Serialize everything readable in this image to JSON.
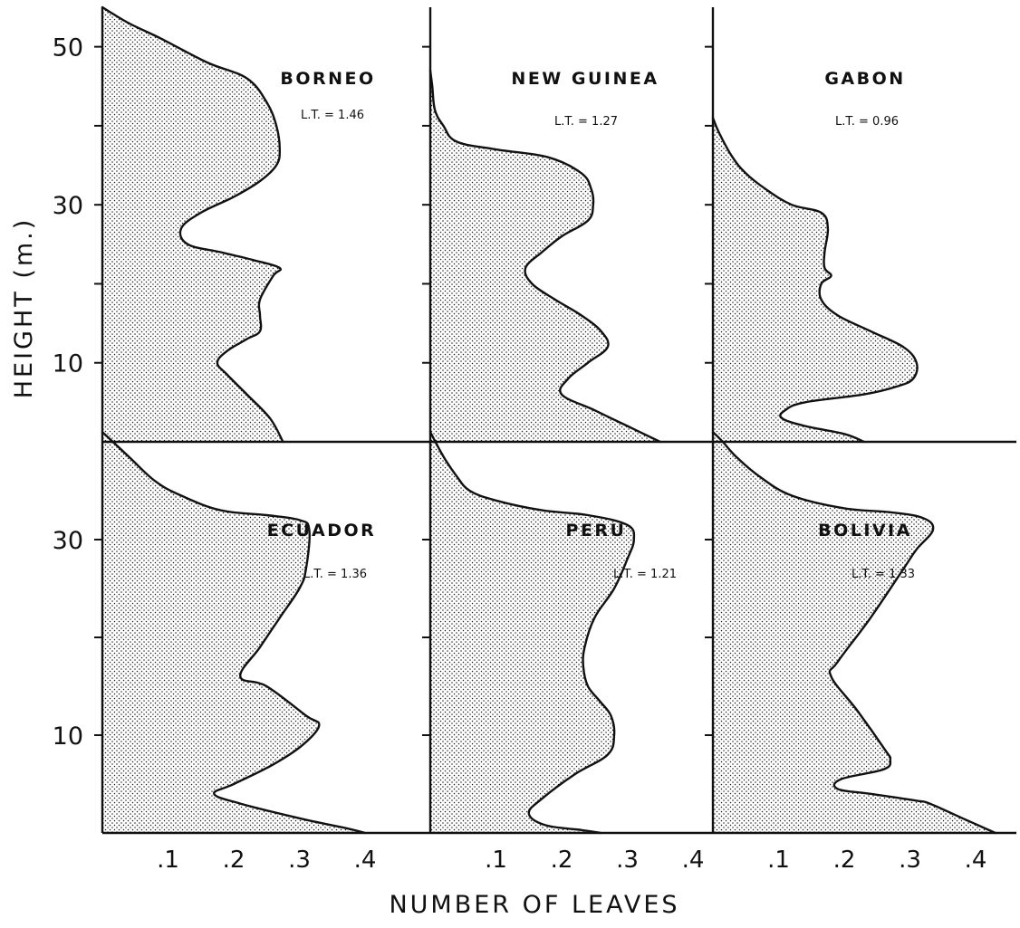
{
  "chart_data": {
    "type": "area",
    "layout": "2x3 small multiples, shared axes",
    "ylabel": "HEIGHT (m.)",
    "xlabel": "NUMBER OF LEAVES",
    "fill_pattern": "stippled",
    "top_row_yticks": [
      "50",
      "30",
      "10"
    ],
    "bottom_row_yticks": [
      "30",
      "10"
    ],
    "xticks": [
      ".1",
      ".2",
      ".3",
      ".4"
    ],
    "xtick_values": [
      0.1,
      0.2,
      0.3,
      0.4
    ],
    "top_row_ylim": [
      0,
      55
    ],
    "bottom_row_ylim": [
      0,
      40
    ],
    "xlim": [
      0,
      0.47
    ],
    "top_row_ytick_values": [
      10,
      20,
      30,
      40,
      50
    ],
    "bottom_row_ytick_values": [
      10,
      20,
      30
    ],
    "panels": [
      {
        "title": "BORNEO",
        "lt": "L.T. = 1.46",
        "row": 0,
        "col": 0,
        "points": [
          [
            0.275,
            0
          ],
          [
            0.255,
            3
          ],
          [
            0.22,
            6
          ],
          [
            0.19,
            8.5
          ],
          [
            0.175,
            10
          ],
          [
            0.19,
            11.5
          ],
          [
            0.22,
            13
          ],
          [
            0.24,
            14
          ],
          [
            0.24,
            16
          ],
          [
            0.24,
            18
          ],
          [
            0.26,
            21
          ],
          [
            0.27,
            22
          ],
          [
            0.23,
            23
          ],
          [
            0.18,
            24
          ],
          [
            0.13,
            25
          ],
          [
            0.12,
            27
          ],
          [
            0.15,
            29
          ],
          [
            0.2,
            31
          ],
          [
            0.24,
            33
          ],
          [
            0.265,
            35
          ],
          [
            0.27,
            37
          ],
          [
            0.265,
            40
          ],
          [
            0.25,
            43
          ],
          [
            0.22,
            46
          ],
          [
            0.16,
            48
          ],
          [
            0.09,
            51
          ],
          [
            0.04,
            53
          ],
          [
            0,
            55
          ]
        ]
      },
      {
        "title": "NEW GUINEA",
        "lt": "L.T. = 1.27",
        "row": 0,
        "col": 1,
        "points": [
          [
            0.35,
            0
          ],
          [
            0.3,
            2
          ],
          [
            0.25,
            4
          ],
          [
            0.2,
            6
          ],
          [
            0.21,
            8
          ],
          [
            0.24,
            10
          ],
          [
            0.27,
            12
          ],
          [
            0.26,
            14
          ],
          [
            0.23,
            16
          ],
          [
            0.19,
            18
          ],
          [
            0.155,
            20
          ],
          [
            0.145,
            22
          ],
          [
            0.17,
            24
          ],
          [
            0.2,
            26
          ],
          [
            0.24,
            28
          ],
          [
            0.248,
            30
          ],
          [
            0.245,
            32
          ],
          [
            0.23,
            34
          ],
          [
            0.18,
            36
          ],
          [
            0.1,
            37
          ],
          [
            0.04,
            38
          ],
          [
            0.02,
            40
          ],
          [
            0.007,
            42
          ],
          [
            0.003,
            45
          ],
          [
            0,
            47
          ]
        ]
      },
      {
        "title": "GABON",
        "lt": "L.T. = 0.96",
        "row": 0,
        "col": 2,
        "points": [
          [
            0.23,
            0
          ],
          [
            0.2,
            1
          ],
          [
            0.14,
            2
          ],
          [
            0.105,
            3
          ],
          [
            0.11,
            4
          ],
          [
            0.14,
            5
          ],
          [
            0.23,
            6
          ],
          [
            0.28,
            7
          ],
          [
            0.305,
            8
          ],
          [
            0.31,
            10
          ],
          [
            0.29,
            12
          ],
          [
            0.24,
            14
          ],
          [
            0.19,
            16
          ],
          [
            0.165,
            18
          ],
          [
            0.165,
            20
          ],
          [
            0.18,
            21
          ],
          [
            0.17,
            22
          ],
          [
            0.17,
            24
          ],
          [
            0.175,
            27
          ],
          [
            0.165,
            29
          ],
          [
            0.12,
            30
          ],
          [
            0.08,
            32
          ],
          [
            0.05,
            34
          ],
          [
            0.03,
            36
          ],
          [
            0.01,
            39
          ],
          [
            0,
            41
          ]
        ]
      },
      {
        "title": "ECUADOR",
        "lt": "L.T. = 1.36",
        "row": 1,
        "col": 0,
        "points": [
          [
            0.4,
            0
          ],
          [
            0.37,
            0.5
          ],
          [
            0.3,
            1.5
          ],
          [
            0.21,
            3
          ],
          [
            0.17,
            4
          ],
          [
            0.2,
            5
          ],
          [
            0.26,
            7
          ],
          [
            0.305,
            9
          ],
          [
            0.33,
            11
          ],
          [
            0.31,
            12
          ],
          [
            0.25,
            15
          ],
          [
            0.21,
            16
          ],
          [
            0.24,
            19
          ],
          [
            0.27,
            22
          ],
          [
            0.3,
            25
          ],
          [
            0.31,
            27
          ],
          [
            0.315,
            31
          ],
          [
            0.3,
            32
          ],
          [
            0.25,
            32.5
          ],
          [
            0.18,
            33
          ],
          [
            0.12,
            34.5
          ],
          [
            0.08,
            36
          ],
          [
            0.04,
            38.5
          ],
          [
            0,
            41
          ]
        ]
      },
      {
        "title": "PERU",
        "lt": "L.T. = 1.21",
        "row": 1,
        "col": 1,
        "points": [
          [
            0.26,
            0
          ],
          [
            0.23,
            0.3
          ],
          [
            0.175,
            0.8
          ],
          [
            0.15,
            2
          ],
          [
            0.17,
            3.5
          ],
          [
            0.22,
            6
          ],
          [
            0.27,
            8
          ],
          [
            0.28,
            10
          ],
          [
            0.275,
            12
          ],
          [
            0.258,
            13.5
          ],
          [
            0.24,
            15
          ],
          [
            0.233,
            17
          ],
          [
            0.235,
            19
          ],
          [
            0.25,
            22
          ],
          [
            0.28,
            25
          ],
          [
            0.3,
            28
          ],
          [
            0.31,
            30
          ],
          [
            0.3,
            31.5
          ],
          [
            0.24,
            32.5
          ],
          [
            0.17,
            33
          ],
          [
            0.1,
            34
          ],
          [
            0.06,
            35
          ],
          [
            0.04,
            36.5
          ],
          [
            0.02,
            38.5
          ],
          [
            0,
            41
          ]
        ]
      },
      {
        "title": "BOLIVIA",
        "lt": "L.T. = 1.33",
        "row": 1,
        "col": 2,
        "points": [
          [
            0.43,
            0
          ],
          [
            0.38,
            1.5
          ],
          [
            0.33,
            3
          ],
          [
            0.31,
            3.3
          ],
          [
            0.24,
            4
          ],
          [
            0.19,
            4.5
          ],
          [
            0.195,
            5.5
          ],
          [
            0.26,
            6.5
          ],
          [
            0.27,
            7.5
          ],
          [
            0.262,
            8.5
          ],
          [
            0.22,
            12.5
          ],
          [
            0.18,
            16
          ],
          [
            0.19,
            17.5
          ],
          [
            0.24,
            22
          ],
          [
            0.29,
            27
          ],
          [
            0.31,
            29
          ],
          [
            0.335,
            31
          ],
          [
            0.32,
            32.2
          ],
          [
            0.27,
            32.8
          ],
          [
            0.2,
            33.2
          ],
          [
            0.12,
            34.5
          ],
          [
            0.07,
            36.5
          ],
          [
            0.035,
            38.5
          ],
          [
            0.015,
            40
          ],
          [
            0,
            41
          ]
        ]
      }
    ]
  }
}
